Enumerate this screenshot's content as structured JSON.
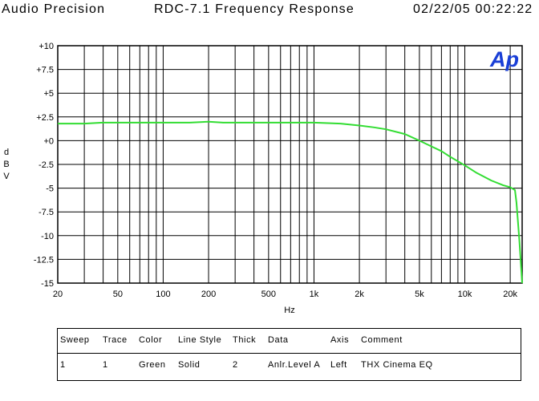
{
  "header": {
    "left": "Audio Precision",
    "center": "RDC-7.1 Frequency Response",
    "right": "02/22/05 00:22:22"
  },
  "logo_text": "Ap",
  "chart_data": {
    "type": "line",
    "title": "RDC-7.1 Frequency Response",
    "xlabel": "Hz",
    "ylabel": [
      "d",
      "B",
      "V"
    ],
    "x_scale": "log",
    "xlim": [
      20,
      24000
    ],
    "ylim": [
      -15,
      10
    ],
    "grid": true,
    "x_tick_labels": [
      {
        "v": 20,
        "t": "20"
      },
      {
        "v": 50,
        "t": "50"
      },
      {
        "v": 100,
        "t": "100"
      },
      {
        "v": 200,
        "t": "200"
      },
      {
        "v": 500,
        "t": "500"
      },
      {
        "v": 1000,
        "t": "1k"
      },
      {
        "v": 2000,
        "t": "2k"
      },
      {
        "v": 5000,
        "t": "5k"
      },
      {
        "v": 10000,
        "t": "10k"
      },
      {
        "v": 20000,
        "t": "20k"
      }
    ],
    "y_tick_labels": [
      {
        "v": 10,
        "t": "+10"
      },
      {
        "v": 7.5,
        "t": "+7.5"
      },
      {
        "v": 5,
        "t": "+5"
      },
      {
        "v": 2.5,
        "t": "+2.5"
      },
      {
        "v": 0,
        "t": "+0"
      },
      {
        "v": -2.5,
        "t": "-2.5"
      },
      {
        "v": -5,
        "t": "-5"
      },
      {
        "v": -7.5,
        "t": "-7.5"
      },
      {
        "v": -10,
        "t": "-10"
      },
      {
        "v": -12.5,
        "t": "-12.5"
      },
      {
        "v": -15,
        "t": "-15"
      }
    ],
    "series": [
      {
        "color": "#33dd33",
        "x": [
          20,
          25,
          30,
          40,
          60,
          100,
          150,
          200,
          250,
          300,
          500,
          700,
          1000,
          1500,
          2000,
          2500,
          3000,
          4000,
          5000,
          6000,
          7000,
          8000,
          10000,
          12000,
          15000,
          18000,
          20000,
          21500,
          22000,
          22500,
          23000,
          23500,
          24000
        ],
        "y": [
          1.8,
          1.8,
          1.8,
          1.9,
          1.9,
          1.9,
          1.9,
          2.0,
          1.9,
          1.9,
          1.9,
          1.9,
          1.9,
          1.8,
          1.6,
          1.4,
          1.2,
          0.7,
          0.0,
          -0.6,
          -1.1,
          -1.7,
          -2.6,
          -3.4,
          -4.2,
          -4.7,
          -4.9,
          -5.2,
          -6.5,
          -8.5,
          -10.5,
          -12.8,
          -15.0
        ]
      }
    ]
  },
  "legend": {
    "headers": [
      "Sweep",
      "Trace",
      "Color",
      "Line Style",
      "Thick",
      "Data",
      "Axis",
      "Comment"
    ],
    "rows": [
      [
        "1",
        "1",
        "Green",
        "Solid",
        "2",
        "Anlr.Level A",
        "Left",
        "THX Cinema EQ"
      ]
    ]
  }
}
